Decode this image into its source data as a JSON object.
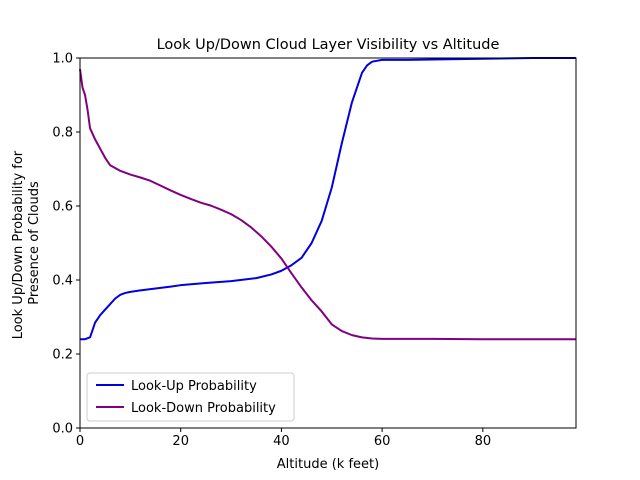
{
  "chart_data": {
    "type": "line",
    "title": "Look Up/Down Cloud Layer Visibility vs Altitude",
    "xlabel": "Altitude (k feet)",
    "ylabel_lines": [
      "Look Up/Down Probability for",
      "Presence of Clouds"
    ],
    "xlim": [
      0,
      98.5
    ],
    "ylim": [
      0,
      1
    ],
    "xticks": [
      0,
      20,
      40,
      60,
      80
    ],
    "yticks": [
      0.0,
      0.2,
      0.4,
      0.6,
      0.8,
      1.0
    ],
    "xtick_labels": [
      "0",
      "20",
      "40",
      "60",
      "80"
    ],
    "ytick_labels": [
      "0.0",
      "0.2",
      "0.4",
      "0.6",
      "0.8",
      "1.0"
    ],
    "grid": false,
    "legend_position": "lower-left",
    "series": [
      {
        "name": "Look-Up Probability",
        "color": "#0000e0",
        "x": [
          0,
          1,
          2,
          3,
          4,
          5,
          6,
          7,
          8,
          9,
          10,
          12,
          15,
          18,
          20,
          25,
          30,
          35,
          38,
          40,
          42,
          44,
          46,
          48,
          50,
          52,
          54,
          56,
          57,
          58,
          60,
          65,
          70,
          75,
          80,
          85,
          90,
          95,
          98.5
        ],
        "y": [
          0.24,
          0.24,
          0.245,
          0.285,
          0.305,
          0.32,
          0.335,
          0.35,
          0.36,
          0.365,
          0.368,
          0.372,
          0.377,
          0.382,
          0.386,
          0.392,
          0.397,
          0.405,
          0.415,
          0.425,
          0.44,
          0.46,
          0.5,
          0.56,
          0.65,
          0.77,
          0.88,
          0.96,
          0.98,
          0.99,
          0.995,
          0.995,
          0.996,
          0.997,
          0.998,
          0.999,
          1.0,
          1.0,
          1.0
        ]
      },
      {
        "name": "Look-Down Probability",
        "color": "#800080",
        "x": [
          0,
          0.5,
          1,
          1.5,
          2,
          3,
          4,
          5,
          6,
          8,
          10,
          12,
          14,
          16,
          18,
          20,
          22,
          24,
          26,
          28,
          30,
          32,
          34,
          36,
          38,
          40,
          42,
          44,
          46,
          48,
          50,
          52,
          54,
          56,
          58,
          60,
          70,
          80,
          90,
          98.5
        ],
        "y": [
          0.97,
          0.92,
          0.9,
          0.86,
          0.81,
          0.78,
          0.755,
          0.73,
          0.71,
          0.695,
          0.685,
          0.677,
          0.668,
          0.655,
          0.642,
          0.63,
          0.619,
          0.609,
          0.601,
          0.59,
          0.578,
          0.562,
          0.542,
          0.518,
          0.49,
          0.458,
          0.418,
          0.38,
          0.345,
          0.315,
          0.28,
          0.262,
          0.251,
          0.245,
          0.242,
          0.241,
          0.241,
          0.24,
          0.24,
          0.24
        ]
      }
    ]
  }
}
